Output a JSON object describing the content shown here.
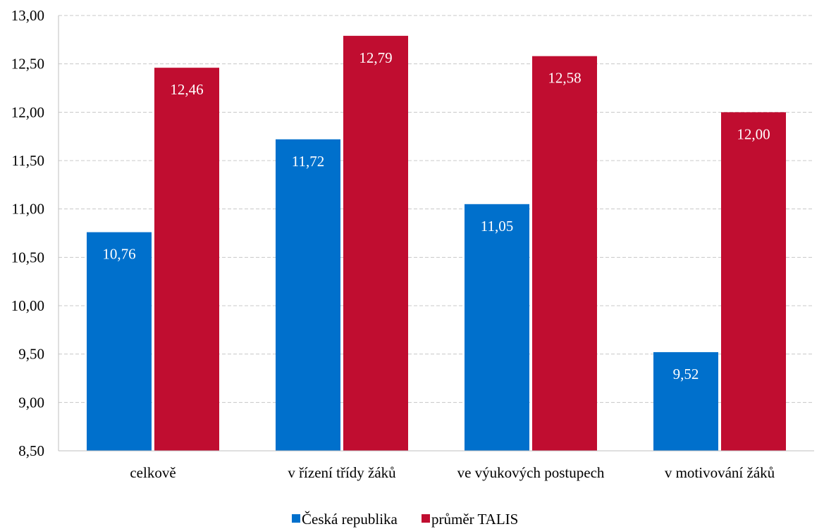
{
  "chart_data": {
    "type": "bar",
    "title": "",
    "xlabel": "",
    "ylabel": "",
    "ylim": [
      8.5,
      13.0
    ],
    "y_ticks": [
      "8,50",
      "9,00",
      "9,50",
      "10,00",
      "10,50",
      "11,00",
      "11,50",
      "12,00",
      "12,50",
      "13,00"
    ],
    "y_tick_values": [
      8.5,
      9.0,
      9.5,
      10.0,
      10.5,
      11.0,
      11.5,
      12.0,
      12.5,
      13.0
    ],
    "grid": true,
    "legend_position": "bottom",
    "categories": [
      "celkově",
      "v řízení třídy žáků",
      "ve výukových postupech",
      "v motivování žáků"
    ],
    "series": [
      {
        "name": "Česká republika",
        "color": "#0070CC",
        "values": [
          10.76,
          11.72,
          11.05,
          9.52
        ],
        "labels": [
          "10,76",
          "11,72",
          "11,05",
          "9,52"
        ]
      },
      {
        "name": "průměr TALIS",
        "color": "#C00D30",
        "values": [
          12.46,
          12.79,
          12.58,
          12.0
        ],
        "labels": [
          "12,46",
          "12,79",
          "12,58",
          "12,00"
        ]
      }
    ]
  }
}
